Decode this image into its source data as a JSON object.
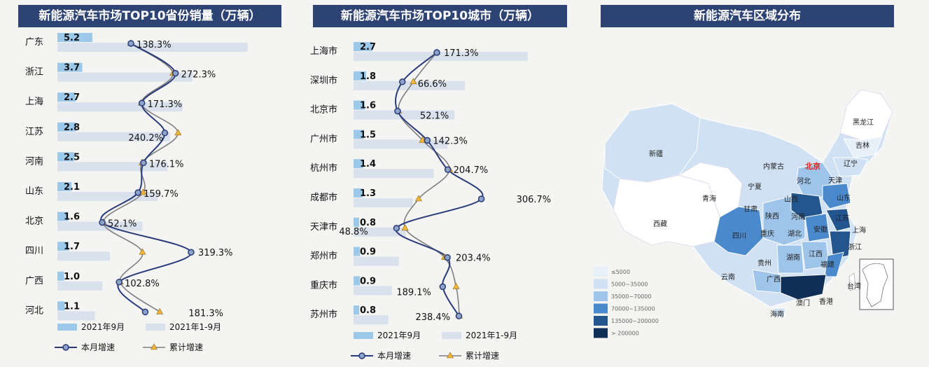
{
  "colors": {
    "title_bg": "#2d4373",
    "bar_month": "#9cc8ea",
    "bar_ytd": "#d9e1ec",
    "line_month": "#2a3b7a",
    "line_cum": "#7f7f7f",
    "marker_month_fill": "#8ea3c8",
    "marker_cum_fill": "#f2b53a",
    "map_levels": [
      "#e7eff9",
      "#cfe1f3",
      "#9ec4ea",
      "#4a89cc",
      "#23568f",
      "#0f2f57"
    ]
  },
  "chart_data": [
    {
      "type": "bar",
      "title": "新能源汽车市场TOP10省份销量（万辆）",
      "categories": [
        "广东",
        "浙江",
        "上海",
        "江苏",
        "河南",
        "山东",
        "北京",
        "四川",
        "广西",
        "河北"
      ],
      "series": [
        {
          "name": "2021年9月",
          "values": [
            5.2,
            3.7,
            2.7,
            2.8,
            2.5,
            2.1,
            1.6,
            1.7,
            1.0,
            1.1
          ]
        },
        {
          "name": "2021年1-9月",
          "values": [
            38.0,
            27.0,
            25.0,
            22.5,
            22.0,
            20.0,
            17.0,
            10.5,
            9.0,
            7.5
          ]
        }
      ],
      "lines": [
        {
          "name": "本月增速",
          "values": [
            138.3,
            272.3,
            171.3,
            240.2,
            176.1,
            159.7,
            52.1,
            319.3,
            102.8,
            181.3
          ]
        },
        {
          "name": "累计增速",
          "values": [
            138,
            265,
            170,
            280,
            172,
            175,
            55,
            173,
            106,
            225
          ]
        }
      ],
      "pct_labels": [
        "138.3%",
        "272.3%",
        "171.3%",
        "240.2%",
        "176.1%",
        "159.7%",
        "52.1%",
        "319.3%",
        "102.8%",
        "181.3%"
      ],
      "legend": [
        "2021年9月",
        "2021年1-9月",
        "本月增速",
        "累计增速"
      ]
    },
    {
      "type": "bar",
      "title": "新能源汽车市场TOP10城市（万辆）",
      "categories": [
        "上海市",
        "深圳市",
        "北京市",
        "广州市",
        "杭州市",
        "成都市",
        "天津市",
        "郑州市",
        "重庆市",
        "苏州市"
      ],
      "series": [
        {
          "name": "2021年9月",
          "values": [
            2.7,
            1.8,
            1.6,
            1.5,
            1.4,
            1.3,
            0.8,
            0.9,
            0.9,
            0.8
          ]
        },
        {
          "name": "2021年1-9月",
          "values": [
            25.0,
            16.0,
            14.5,
            13.5,
            11.5,
            8.5,
            7.5,
            6.5,
            5.5,
            5.0
          ]
        }
      ],
      "lines": [
        {
          "name": "本月增速",
          "values": [
            171.3,
            66.6,
            52.1,
            142.3,
            204.7,
            306.7,
            48.8,
            203.4,
            189.1,
            238.4
          ]
        },
        {
          "name": "累计增速",
          "values": [
            171,
            100,
            55,
            128,
            210,
            116,
            75,
            195,
            230,
            240
          ]
        }
      ],
      "pct_labels": [
        "171.3%",
        "66.6%",
        "52.1%",
        "142.3%",
        "204.7%",
        "306.7%",
        "48.8%",
        "203.4%",
        "189.1%",
        "238.4%"
      ],
      "legend": [
        "2021年9月",
        "2021年1-9月",
        "本月增速",
        "累计增速"
      ]
    }
  ],
  "map": {
    "title": "新能源汽车区域分布",
    "labels": [
      "黑龙江",
      "吉林",
      "辽宁",
      "新疆",
      "内蒙古",
      "北京",
      "天津",
      "河北",
      "宁夏",
      "山西",
      "山东",
      "青海",
      "甘肃",
      "陕西",
      "河南",
      "江苏",
      "西藏",
      "四川",
      "重庆",
      "湖北",
      "安徽",
      "上海",
      "浙江",
      "江西",
      "湖南",
      "贵州",
      "云南",
      "广西",
      "福建",
      "台湾",
      "澳门",
      "香港",
      "海南"
    ],
    "legend": [
      "≤5000",
      "5000~35000",
      "35000~70000",
      "70000~135000",
      "135000~200000",
      "> 200000"
    ]
  }
}
